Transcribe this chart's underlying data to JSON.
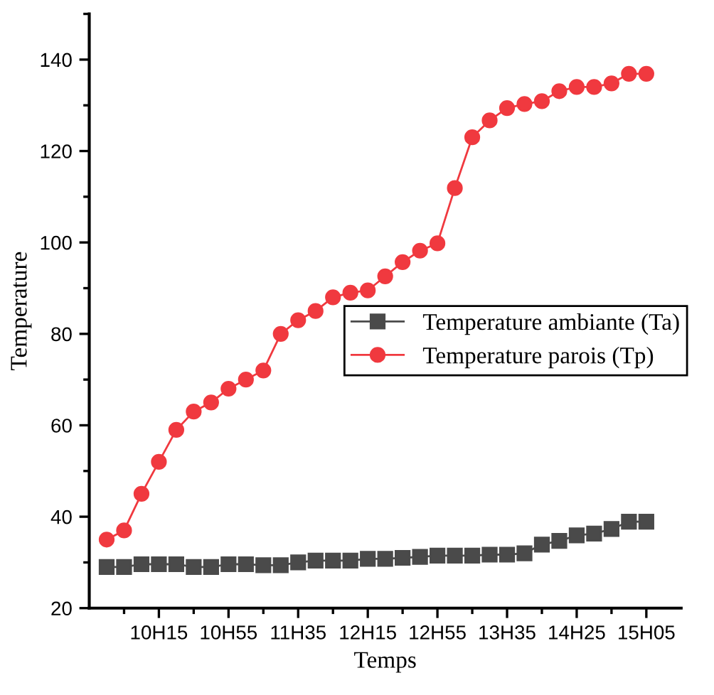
{
  "chart_data": {
    "type": "line",
    "xlabel": "Temps",
    "ylabel": "Temperature",
    "categories": [
      null,
      null,
      null,
      "10H15",
      null,
      null,
      null,
      "10H55",
      null,
      null,
      null,
      "11H35",
      null,
      null,
      null,
      "12H15",
      null,
      null,
      null,
      "12H55",
      null,
      null,
      null,
      "13H35",
      null,
      null,
      null,
      "14H25",
      null,
      null,
      null,
      "15H05"
    ],
    "series": [
      {
        "name": "Temperature ambiante (Ta)",
        "color": "#4a4a4a",
        "marker": "square",
        "values": [
          29,
          29,
          29.6,
          29.6,
          29.6,
          29,
          29,
          29.6,
          29.6,
          29.4,
          29.4,
          30,
          30.4,
          30.4,
          30.4,
          30.8,
          30.8,
          31,
          31.2,
          31.5,
          31.5,
          31.5,
          31.7,
          31.7,
          32,
          33.9,
          34.7,
          35.9,
          36.3,
          37.3,
          38.9,
          38.9
        ]
      },
      {
        "name": "Temperature parois (Tp)",
        "color": "#f0393f",
        "marker": "circle",
        "values": [
          35,
          37,
          45,
          52,
          59,
          63,
          65,
          68,
          70,
          72,
          80,
          83,
          85,
          88,
          89,
          89.5,
          92.6,
          95.7,
          98.2,
          99.8,
          111.9,
          123,
          126.7,
          129.4,
          130.3,
          130.9,
          133.1,
          134,
          134,
          134.8,
          136.9,
          136.9
        ]
      }
    ],
    "ylim": [
      20,
      150
    ],
    "yticks": [
      20,
      40,
      60,
      80,
      100,
      120,
      140
    ],
    "grid": false,
    "legend": "right",
    "line_style": "solid"
  }
}
